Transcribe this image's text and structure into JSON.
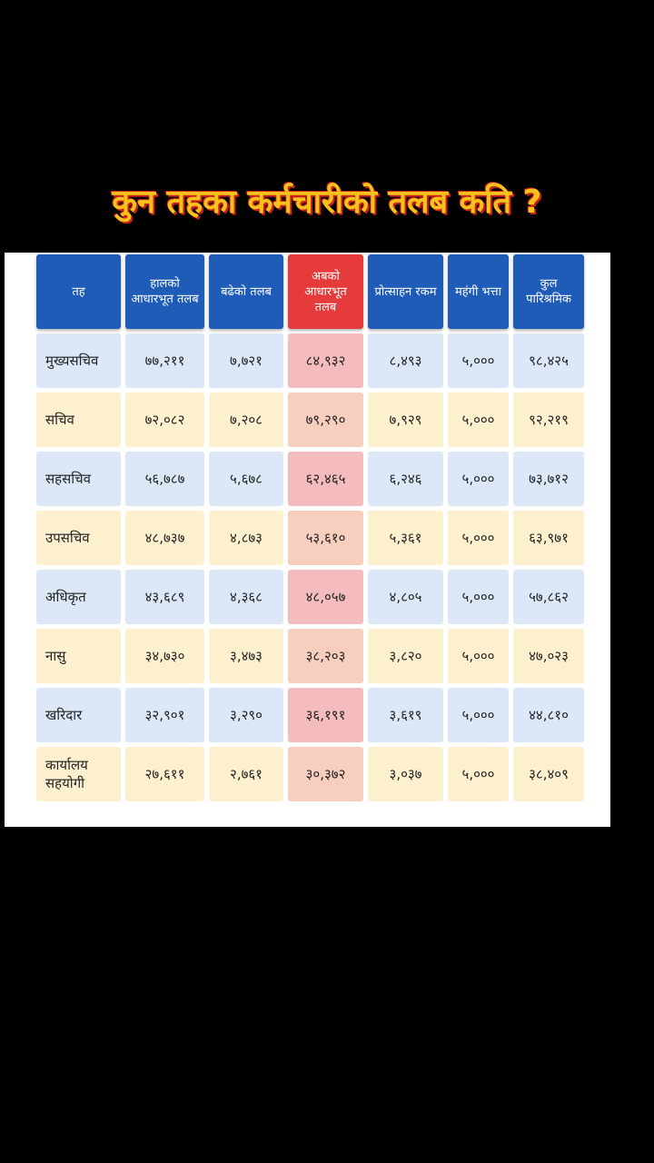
{
  "title": "कुन तहका कर्मचारीको तलब कति ?",
  "table": {
    "headers": [
      "तह",
      "हालको आधारभूत तलब",
      "बढेको तलब",
      "अबको आधारभूत तलब",
      "प्रोत्साहन रकम",
      "महंगी भत्ता",
      "कुल पारिश्रमिक"
    ],
    "rows": [
      [
        "मुख्यसचिव",
        "७७,२११",
        "७,७२१",
        "८४,९३२",
        "८,४९३",
        "५,०००",
        "९८,४२५"
      ],
      [
        "सचिव",
        "७२,०८२",
        "७,२०८",
        "७९,२९०",
        "७,९२९",
        "५,०००",
        "९२,२१९"
      ],
      [
        "सहसचिव",
        "५६,७८७",
        "५,६७८",
        "६२,४६५",
        "६,२४६",
        "५,०००",
        "७३,७१२"
      ],
      [
        "उपसचिव",
        "४८,७३७",
        "४,८७३",
        "५३,६१०",
        "५,३६१",
        "५,०००",
        "६३,९७१"
      ],
      [
        "अधिकृत",
        "४३,६८९",
        "४,३६८",
        "४८,०५७",
        "४,८०५",
        "५,०००",
        "५७,८६२"
      ],
      [
        "नासु",
        "३४,७३०",
        "३,४७३",
        "३८,२०३",
        "३,८२०",
        "५,०००",
        "४७,०२३"
      ],
      [
        "खरिदार",
        "३२,९०१",
        "३,२९०",
        "३६,१९१",
        "३,६१९",
        "५,०००",
        "४४,८१०"
      ],
      [
        "कार्यालय सहयोगी",
        "२७,६११",
        "२,७६१",
        "३०,३७२",
        "३,०३७",
        "५,०००",
        "३८,४०९"
      ]
    ]
  }
}
